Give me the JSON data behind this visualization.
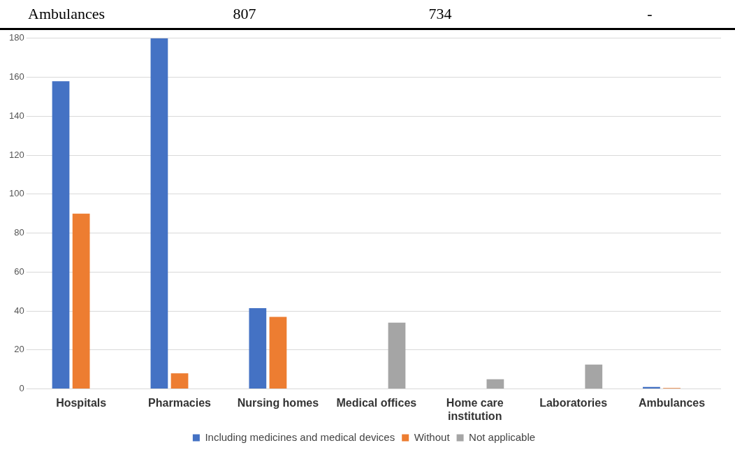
{
  "chart_data": {
    "type": "bar",
    "categories": [
      "Hospitals",
      "Pharmacies",
      "Nursing homes",
      "Medical offices",
      [
        "Home care",
        "institution"
      ],
      "Laboratories",
      "Ambulances"
    ],
    "series": [
      {
        "name": "Including medicines and medical devices",
        "color": "#4472c4",
        "values": [
          158,
          180,
          41.5,
          null,
          null,
          null,
          1
        ]
      },
      {
        "name": "Without",
        "color": "#ed7d31",
        "values": [
          90,
          8,
          37,
          null,
          null,
          null,
          0.5
        ]
      },
      {
        "name": "Not applicable",
        "color": "#a5a5a5",
        "values": [
          null,
          null,
          null,
          34,
          5,
          12.5,
          null
        ]
      }
    ],
    "ylim": [
      0,
      180
    ],
    "yticks": [
      0,
      20,
      40,
      60,
      80,
      100,
      120,
      140,
      160,
      180
    ],
    "grid": "y",
    "legend": "bottom",
    "annotations": [
      "Ambulances",
      "807",
      "734",
      "-"
    ]
  }
}
